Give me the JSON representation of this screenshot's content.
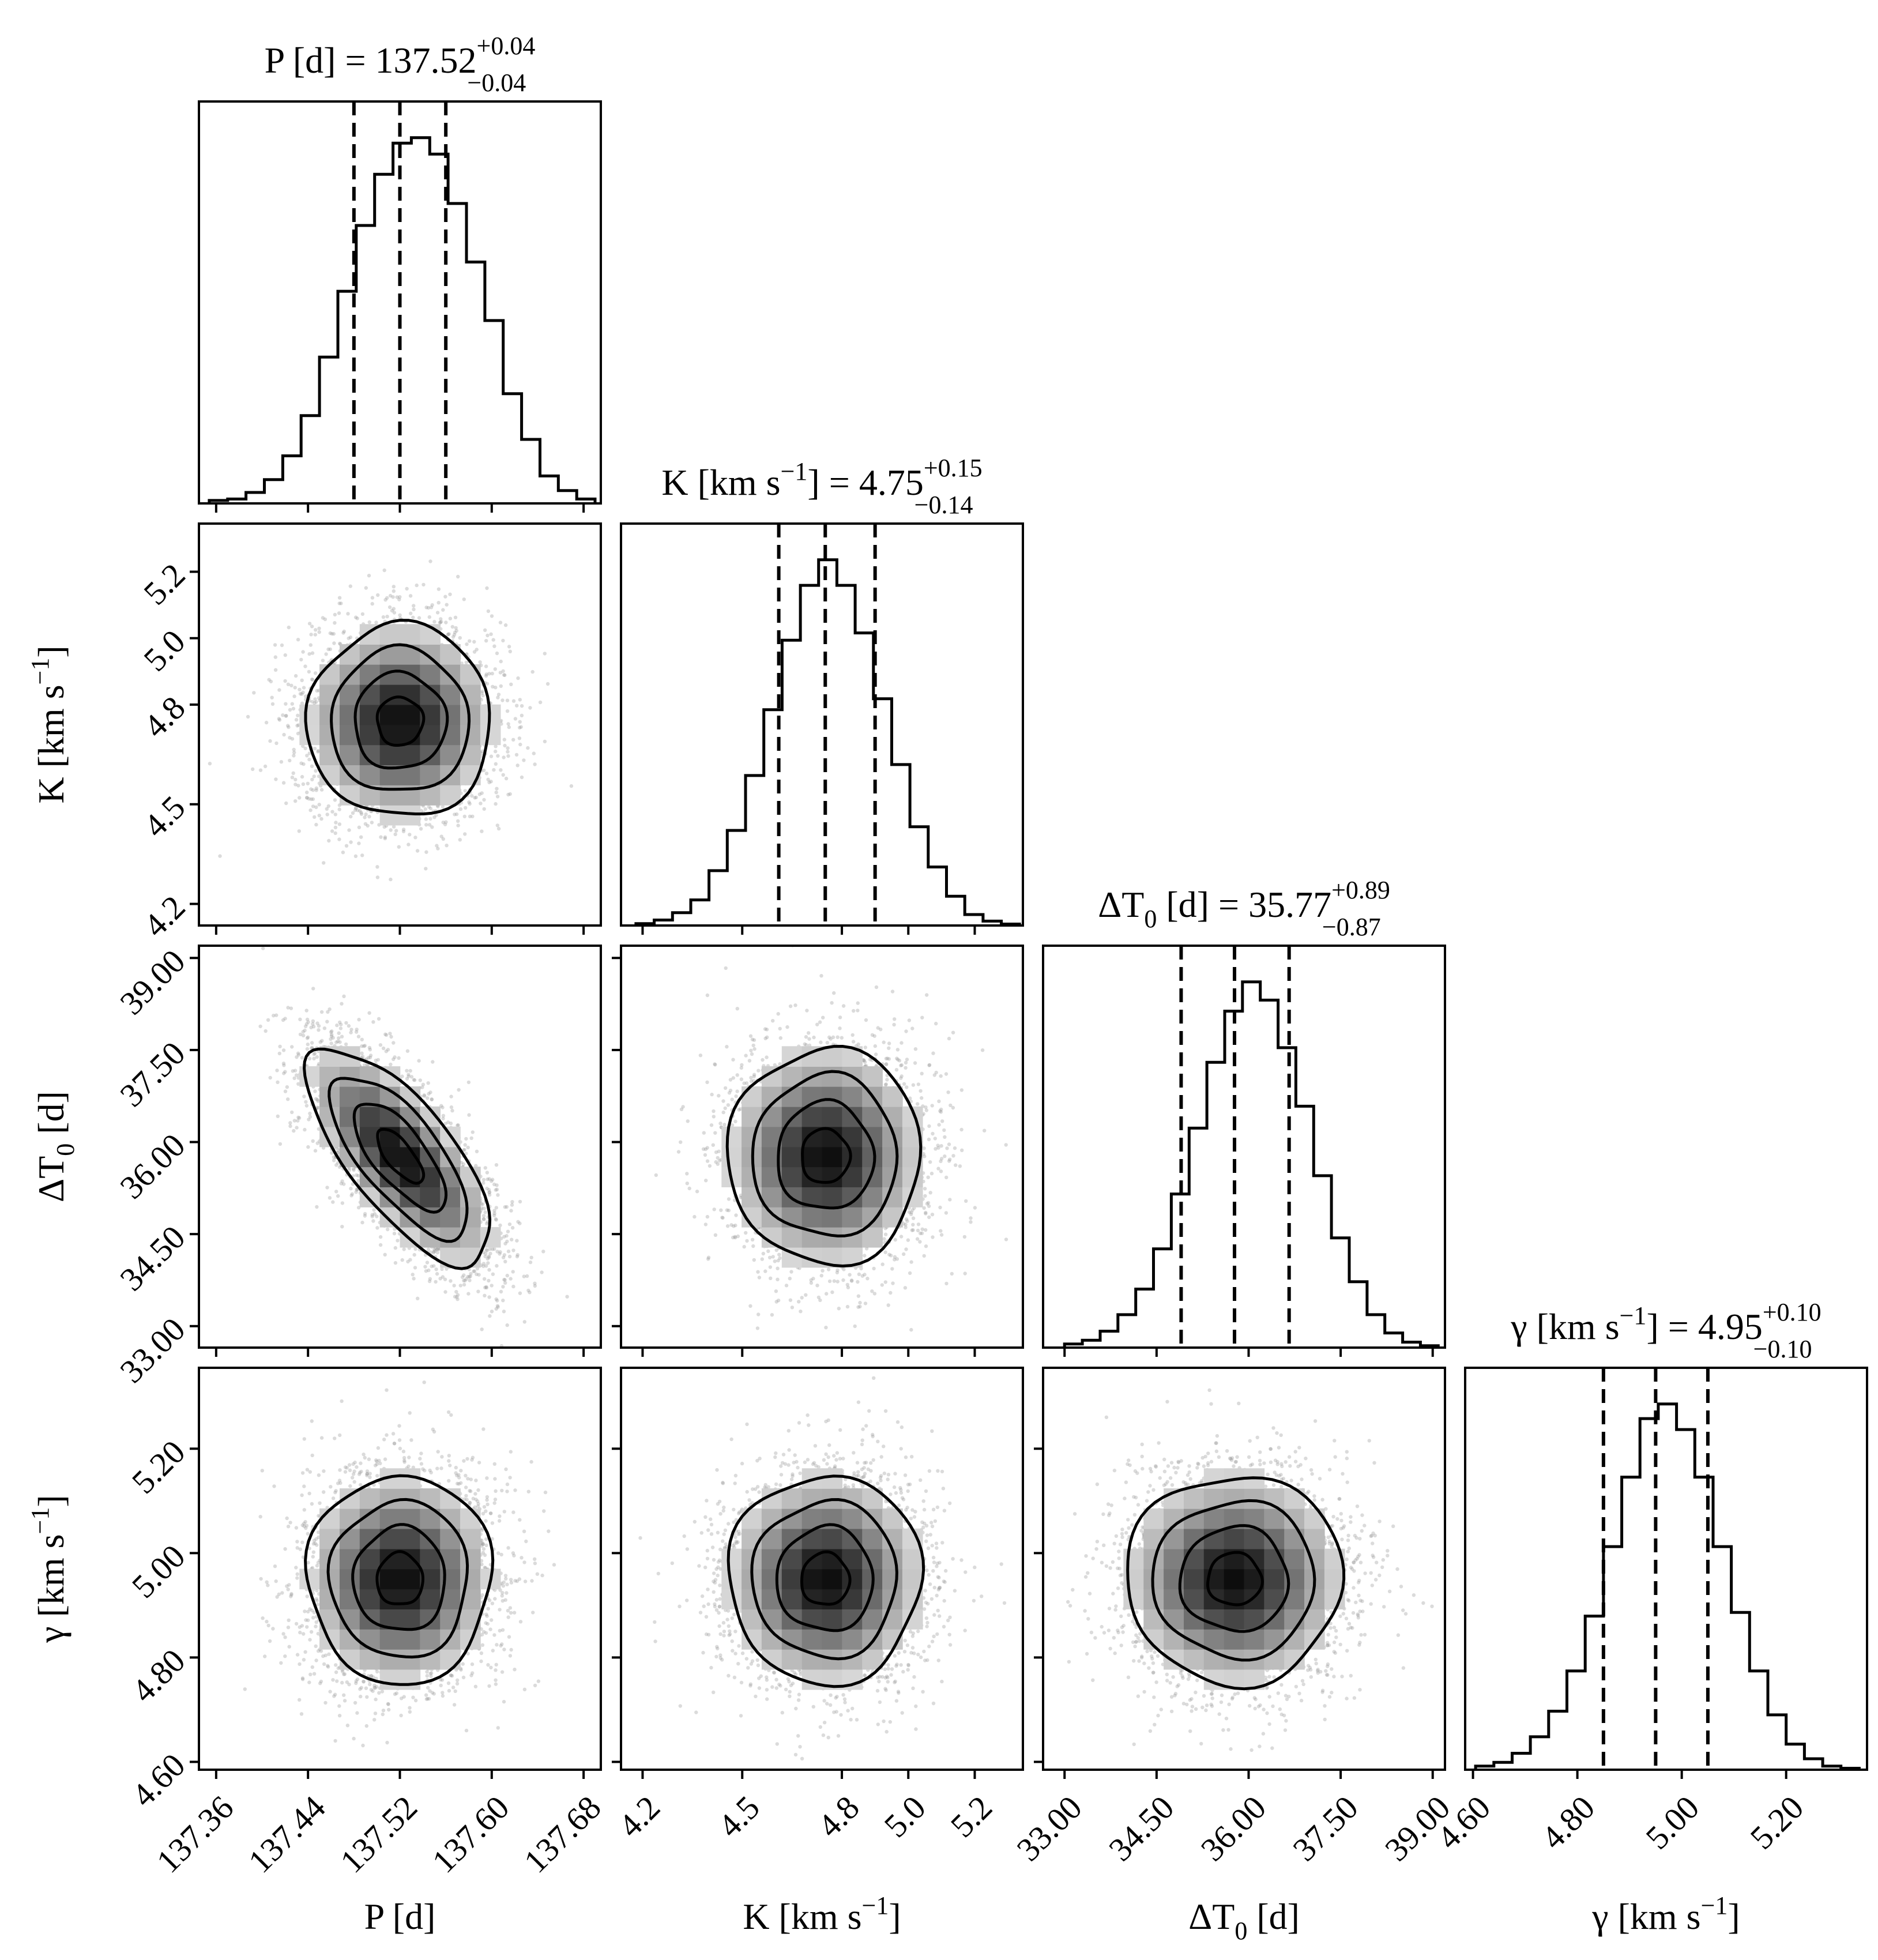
{
  "chart_data": {
    "type": "corner",
    "params": [
      {
        "id": "P",
        "label": "P [d]",
        "title": {
          "name": "P [d] = 137.52",
          "plus": "+0.04",
          "minus": "−0.04"
        },
        "median": 137.52,
        "err_minus": 0.04,
        "err_plus": 0.04,
        "range": [
          137.345,
          137.695
        ],
        "ticks": [
          137.36,
          137.44,
          137.52,
          137.6,
          137.68
        ],
        "tick_labels": [
          "137.36",
          "137.44",
          "137.52",
          "137.60",
          "137.68"
        ],
        "quantiles": [
          137.48,
          137.52,
          137.56
        ],
        "hist": {
          "edges": [
            137.354,
            137.37,
            137.386,
            137.402,
            137.418,
            137.434,
            137.45,
            137.466,
            137.482,
            137.498,
            137.514,
            137.53,
            137.546,
            137.562,
            137.578,
            137.594,
            137.61,
            137.626,
            137.642,
            137.658,
            137.674,
            137.69
          ],
          "values": [
            0.008,
            0.012,
            0.03,
            0.065,
            0.13,
            0.24,
            0.4,
            0.58,
            0.76,
            0.9,
            0.985,
            1.0,
            0.955,
            0.82,
            0.66,
            0.5,
            0.3,
            0.175,
            0.075,
            0.035,
            0.012
          ]
        }
      },
      {
        "id": "K",
        "label": "K [km s",
        "label_sup": "−1",
        "label_close": "]",
        "title": {
          "name": "K [km s",
          "sup": "−1",
          "rest": "] = 4.75",
          "plus": "+0.15",
          "minus": "−0.14"
        },
        "median": 4.75,
        "err_minus": 0.14,
        "err_plus": 0.15,
        "range": [
          4.135,
          5.345
        ],
        "ticks": [
          4.2,
          4.5,
          4.8,
          5.0,
          5.2
        ],
        "tick_labels": [
          "4.2",
          "4.5",
          "4.8",
          "5.0",
          "5.2"
        ],
        "quantiles": [
          4.61,
          4.75,
          4.9
        ],
        "hist": {
          "edges": [
            4.18,
            4.235,
            4.29,
            4.345,
            4.4,
            4.455,
            4.51,
            4.565,
            4.62,
            4.675,
            4.73,
            4.785,
            4.84,
            4.895,
            4.95,
            5.005,
            5.06,
            5.115,
            5.17,
            5.225,
            5.28,
            5.335
          ],
          "values": [
            0.005,
            0.015,
            0.035,
            0.07,
            0.15,
            0.26,
            0.41,
            0.59,
            0.78,
            0.93,
            1.0,
            0.93,
            0.8,
            0.62,
            0.44,
            0.27,
            0.16,
            0.08,
            0.03,
            0.012,
            0.004
          ]
        }
      },
      {
        "id": "dT0",
        "label": "ΔT",
        "label_sub": "0",
        "label_close": " [d]",
        "title": {
          "name": "ΔT",
          "sub": "0",
          "rest": " [d] = 35.77",
          "plus": "+0.89",
          "minus": "−0.87"
        },
        "median": 35.77,
        "err_minus": 0.87,
        "err_plus": 0.89,
        "range": [
          32.65,
          39.2
        ],
        "ticks": [
          33.0,
          34.5,
          36.0,
          37.5,
          39.0
        ],
        "tick_labels": [
          "33.00",
          "34.50",
          "36.00",
          "37.50",
          "39.00"
        ],
        "quantiles": [
          34.9,
          35.77,
          36.66
        ],
        "hist": {
          "edges": [
            33.0,
            33.29,
            33.58,
            33.87,
            34.16,
            34.45,
            34.74,
            35.03,
            35.32,
            35.61,
            35.9,
            36.19,
            36.48,
            36.77,
            37.06,
            37.35,
            37.64,
            37.93,
            38.22,
            38.51,
            38.8,
            39.09
          ],
          "values": [
            0.01,
            0.02,
            0.045,
            0.09,
            0.16,
            0.27,
            0.42,
            0.6,
            0.78,
            0.92,
            1.0,
            0.95,
            0.82,
            0.66,
            0.47,
            0.3,
            0.18,
            0.09,
            0.04,
            0.015,
            0.005
          ]
        }
      },
      {
        "id": "gamma",
        "label": "γ [km s",
        "label_sup": "−1",
        "label_close": "]",
        "title": {
          "name": "γ [km s",
          "sup": "−1",
          "rest": "] = 4.95",
          "plus": "+0.10",
          "minus": "−0.10"
        },
        "median": 4.95,
        "err_minus": 0.1,
        "err_plus": 0.1,
        "range": [
          4.585,
          5.355
        ],
        "ticks": [
          4.6,
          4.8,
          5.0,
          5.2
        ],
        "tick_labels": [
          "4.60",
          "4.80",
          "5.00",
          "5.20"
        ],
        "quantiles": [
          4.85,
          4.95,
          5.05
        ],
        "hist": {
          "edges": [
            4.605,
            4.64,
            4.675,
            4.71,
            4.745,
            4.78,
            4.815,
            4.85,
            4.885,
            4.92,
            4.955,
            4.99,
            5.025,
            5.06,
            5.095,
            5.13,
            5.165,
            5.2,
            5.235,
            5.27,
            5.305,
            5.34
          ],
          "values": [
            0.01,
            0.02,
            0.045,
            0.09,
            0.16,
            0.27,
            0.42,
            0.61,
            0.8,
            0.96,
            1.0,
            0.93,
            0.8,
            0.61,
            0.43,
            0.27,
            0.15,
            0.07,
            0.03,
            0.01,
            0.004
          ]
        }
      }
    ],
    "correlations": {
      "P|dT0": -0.72
    },
    "contour_levels_sigma": [
      0.5,
      1.0,
      1.5,
      2.0
    ],
    "scatter_color": "#999999",
    "density_color": "#000000",
    "line_color": "#000000"
  }
}
